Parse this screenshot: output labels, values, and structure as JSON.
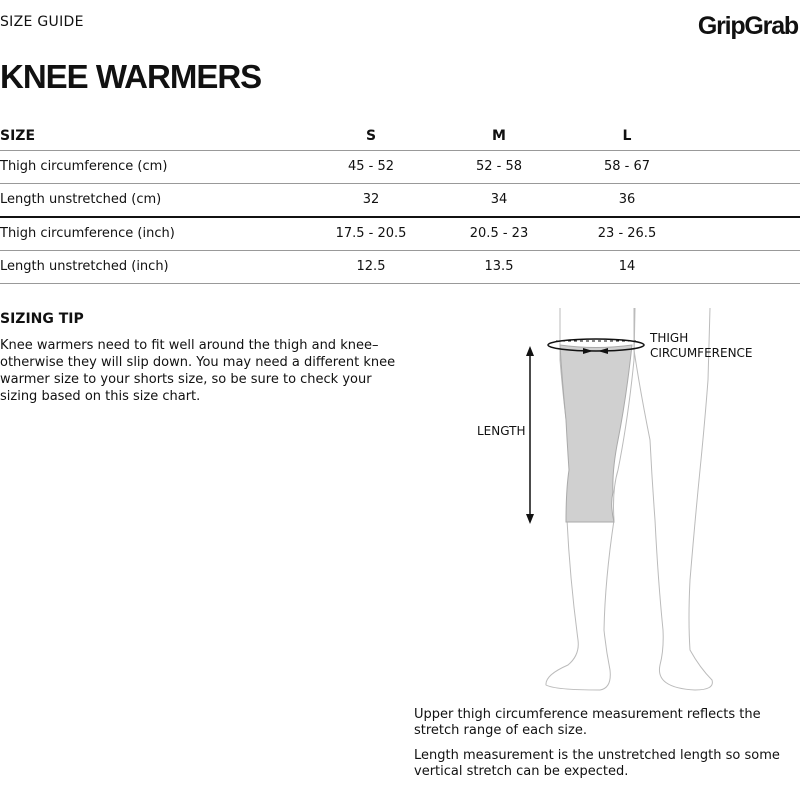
{
  "header": {
    "kicker": "SIZE GUIDE",
    "brand": "GripGrab",
    "title": "KNEE WARMERS"
  },
  "table": {
    "columns": [
      "SIZE",
      "S",
      "M",
      "L"
    ],
    "rows": [
      {
        "label": "Thigh circumference (cm)",
        "values": [
          "45 - 52",
          "52 - 58",
          "58 - 67"
        ]
      },
      {
        "label": "Length unstretched (cm)",
        "values": [
          "32",
          "34",
          "36"
        ]
      },
      {
        "label": "Thigh circumference (inch)",
        "values": [
          "17.5 - 20.5",
          "20.5 - 23",
          "23 - 26.5"
        ]
      },
      {
        "label": "Length unstretched (inch)",
        "values": [
          "12.5",
          "13.5",
          "14"
        ]
      }
    ]
  },
  "tip": {
    "heading": "SIZING TIP",
    "text": "Knee warmers need to fit well around the thigh and knee–otherwise they will slip down. You may need a different knee warmer size to your shorts size, so be sure to check your sizing based on this size chart."
  },
  "diagram": {
    "thigh_label_1": "THIGH",
    "thigh_label_2": "CIRCUMFERENCE",
    "length_label": "LENGTH",
    "warmer_color": "#d0d0d0"
  },
  "notes": [
    "Upper thigh circumference measurement reflects the stretch range of each size.",
    "Length measurement is the unstretched length so some vertical stretch can be expected."
  ]
}
